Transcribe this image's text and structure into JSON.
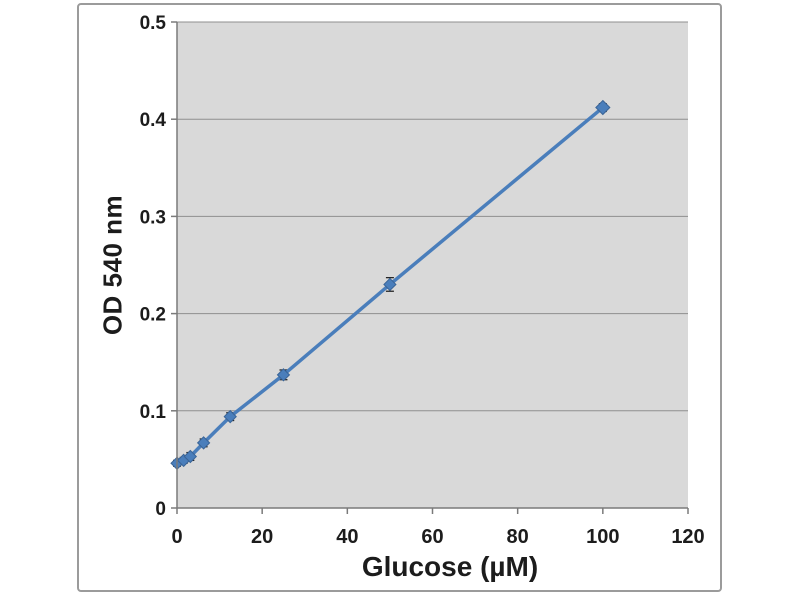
{
  "chart_data": {
    "type": "line",
    "xlabel": "Glucose (µM)",
    "ylabel": "OD 540 nm",
    "x": [
      0,
      1.56,
      3.13,
      6.25,
      12.5,
      25,
      50,
      100
    ],
    "y": [
      0.046,
      0.049,
      0.053,
      0.067,
      0.094,
      0.137,
      0.23,
      0.412
    ],
    "yerr": [
      0.003,
      0.003,
      0.004,
      0.004,
      0.004,
      0.005,
      0.007,
      0.004
    ],
    "xlim": [
      0,
      120
    ],
    "ylim": [
      0,
      0.5
    ],
    "xticks": {
      "values": [
        0,
        20,
        40,
        60,
        80,
        100,
        120
      ],
      "labels": [
        "0",
        "20",
        "40",
        "60",
        "80",
        "100",
        "120"
      ]
    },
    "yticks": {
      "values": [
        0,
        0.1,
        0.2,
        0.3,
        0.4,
        0.5
      ],
      "labels": [
        "0",
        "0.1",
        "0.2",
        "0.3",
        "0.4",
        "0.5"
      ]
    },
    "grid": "horizontal",
    "legend": "none",
    "marker": "diamond",
    "colors": {
      "series": "#4a7ebb",
      "marker_edge": "#3a6496",
      "error_bar": "#262626",
      "plot_bg": "#d9d9d9",
      "gridline": "#8f8f8f",
      "axis": "#7a7a7a",
      "text": "#1c1c1c",
      "frame_border": "#9b9b9b",
      "page_bg": "#ffffff"
    }
  }
}
